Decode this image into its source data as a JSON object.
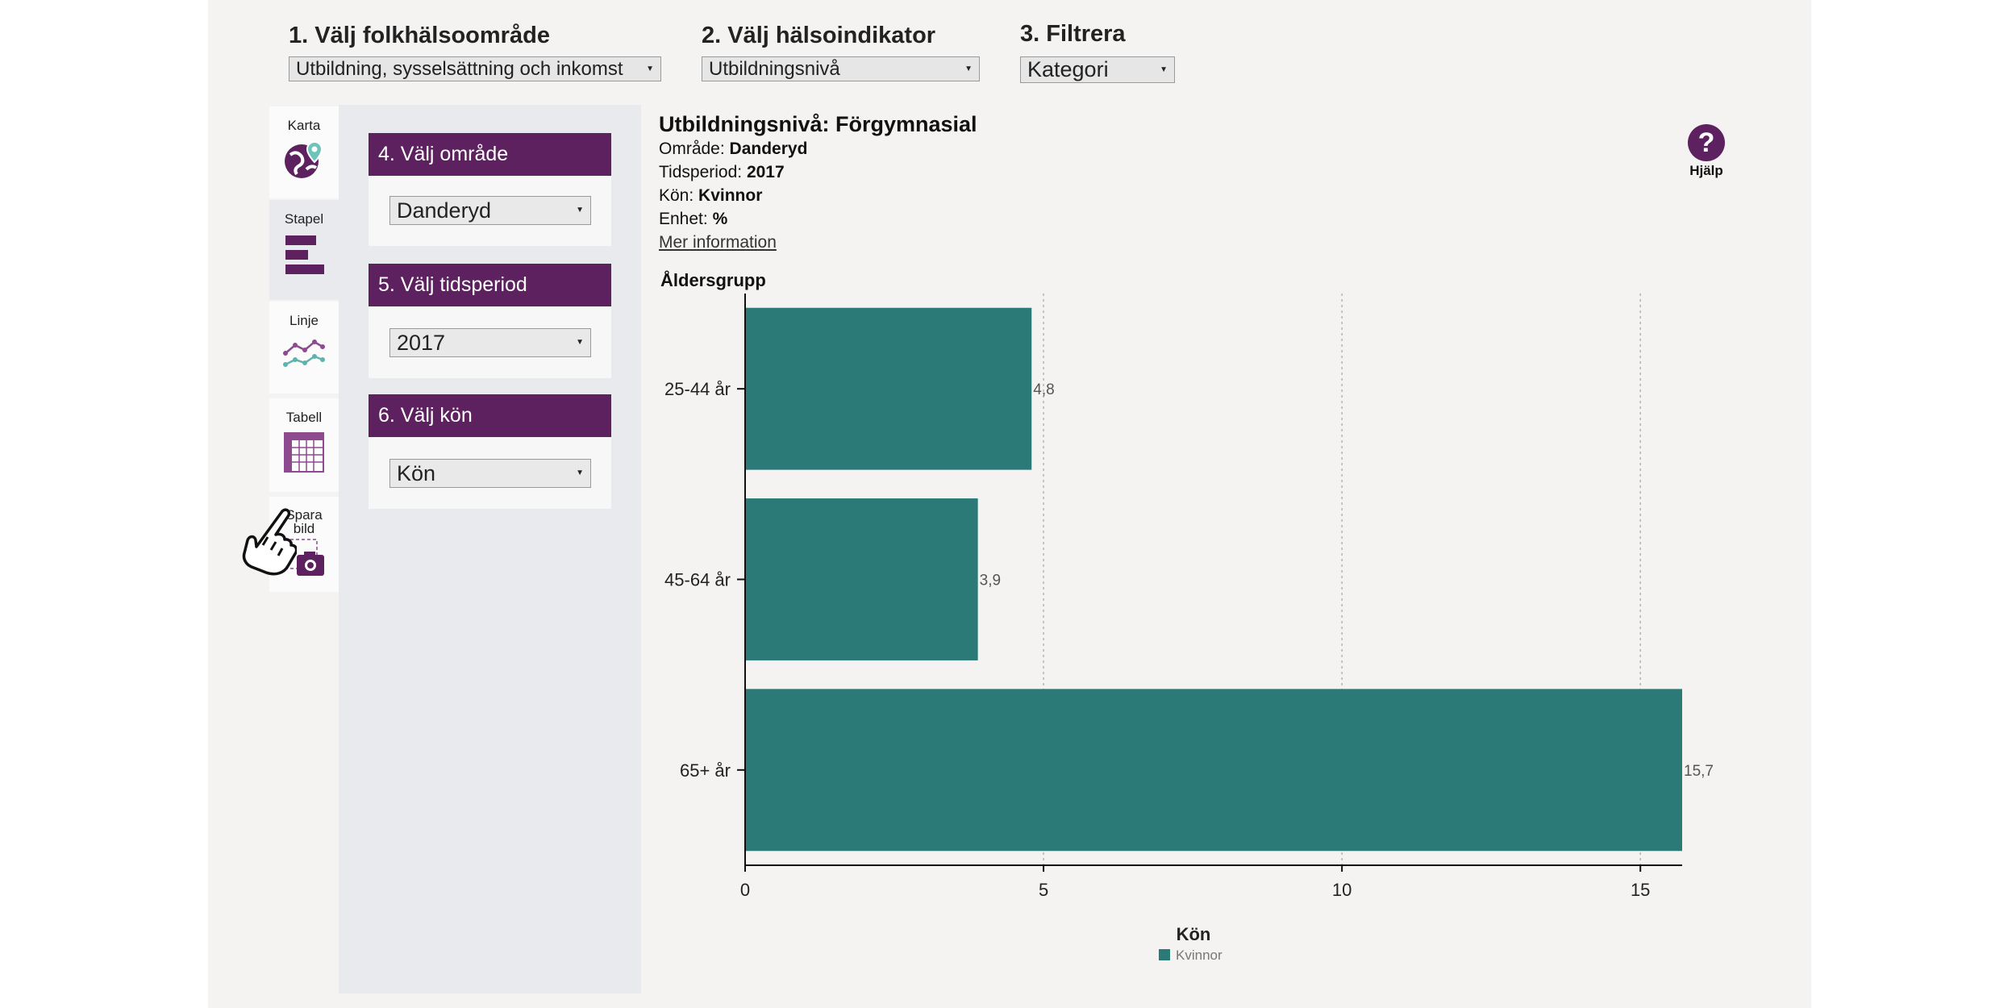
{
  "filters": {
    "step1_label": "1. Välj folkhälsoområde",
    "step1_value": "Utbildning, sysselsättning och inkomst",
    "step2_label": "2. Välj hälsoindikator",
    "step2_value": "Utbildningsnivå",
    "step3_label": "3. Filtrera",
    "step3_value": "Kategori"
  },
  "tabs": [
    {
      "label": "Karta",
      "icon": "globe-pin-icon"
    },
    {
      "label": "Stapel",
      "icon": "bar-chart-icon"
    },
    {
      "label": "Linje",
      "icon": "line-chart-icon"
    },
    {
      "label": "Tabell",
      "icon": "table-icon"
    },
    {
      "label1": "Spara",
      "label2": "bild",
      "icon": "camera-icon"
    }
  ],
  "panel": {
    "area_label": "4. Välj område",
    "area_value": "Danderyd",
    "period_label": "5. Välj tidsperiod",
    "period_value": "2017",
    "sex_label": "6. Välj kön",
    "sex_value": "Kön"
  },
  "info": {
    "indicator": "Utbildningsnivå",
    "category": "Förgymnasial",
    "area_key": "Område:",
    "area_val": "Danderyd",
    "period_key": "Tidsperiod:",
    "period_val": "2017",
    "sex_key": "Kön:",
    "sex_val": "Kvinnor",
    "unit_key": "Enhet:",
    "unit_val": "%",
    "more_link": "Mer information"
  },
  "help": {
    "symbol": "?",
    "label": "Hjälp"
  },
  "chart_data": {
    "type": "bar",
    "orientation": "horizontal",
    "ylabel": "Åldersgrupp",
    "categories": [
      "25-44 år",
      "45-64 år",
      "65+ år"
    ],
    "series": [
      {
        "name": "Kvinnor",
        "values": [
          4.8,
          3.9,
          15.7
        ],
        "labels": [
          "4,8",
          "3,9",
          "15,7"
        ]
      }
    ],
    "xlim": [
      0,
      15.7
    ],
    "xticks": [
      0,
      5,
      10,
      15
    ],
    "legend_title": "Kön",
    "legend_position": "bottom",
    "bar_color": "#2b7a78",
    "grid": "vertical-dashed"
  },
  "colors": {
    "accent": "#5e2160",
    "bar": "#2b7a78"
  }
}
